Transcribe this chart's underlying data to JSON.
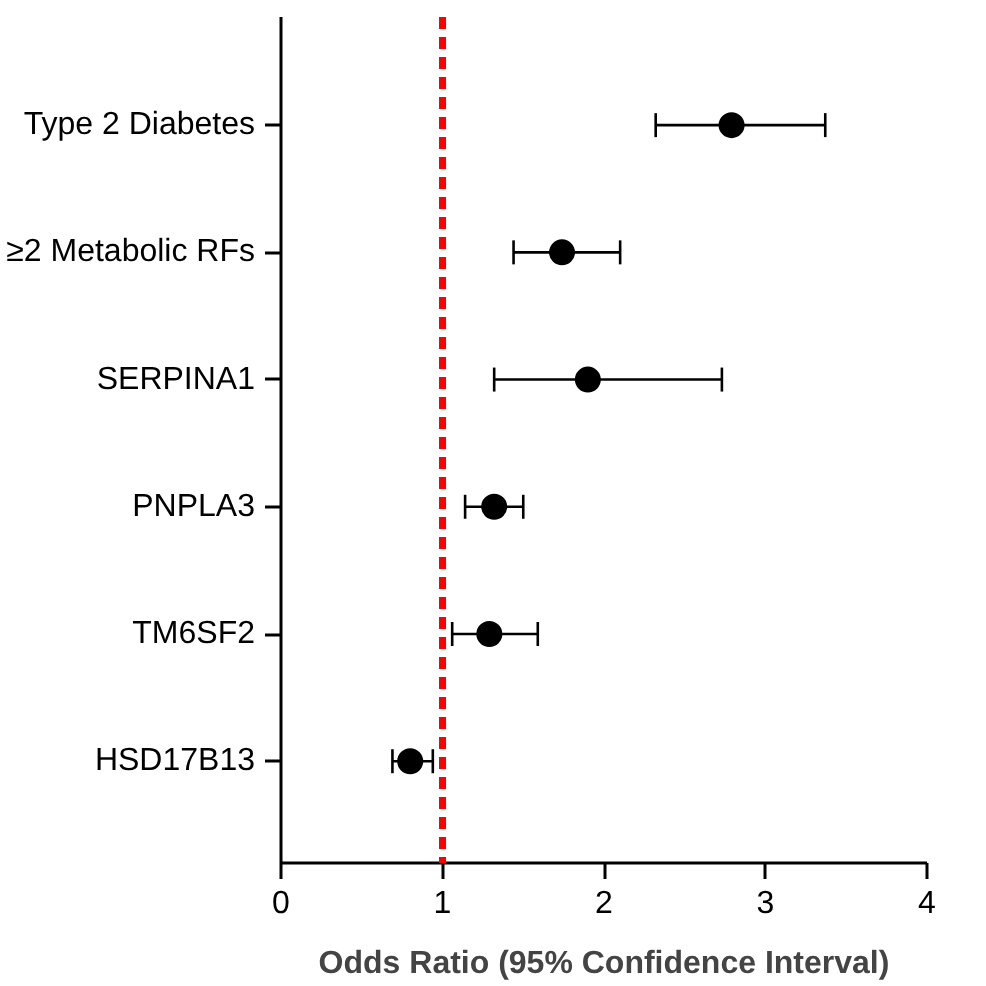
{
  "chart_data": {
    "type": "scatter",
    "xlabel": "Odds Ratio (95% Confidence Interval)",
    "categories": [
      "Type 2 Diabetes",
      "≥2 Metabolic RFs",
      "SERPINA1",
      "PNPLA3",
      "TM6SF2",
      "HSD17B13"
    ],
    "orientation": "horizontal",
    "color": "#000000",
    "values": [
      2.79,
      1.74,
      1.9,
      1.32,
      1.29,
      0.8
    ],
    "errors": [
      [
        2.32,
        3.37
      ],
      [
        1.44,
        2.1
      ],
      [
        1.32,
        2.73
      ],
      [
        1.14,
        1.5
      ],
      [
        1.06,
        1.59
      ],
      [
        0.69,
        0.94
      ]
    ],
    "marker": "circle",
    "xlim": [
      0,
      4
    ],
    "xticks": [
      0,
      1,
      2,
      3,
      4
    ],
    "grid": false,
    "ref_lines": [
      {
        "axis": "x",
        "value": 1,
        "color": "#ff0000",
        "line_style": "dashed"
      }
    ]
  }
}
